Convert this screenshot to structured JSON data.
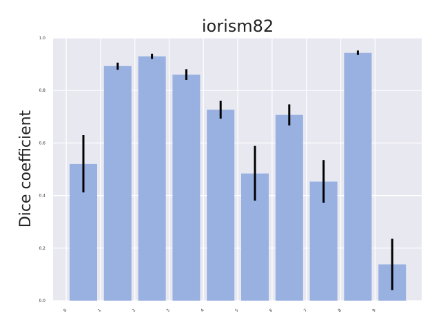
{
  "chart_data": {
    "type": "bar",
    "title": "iorism82",
    "xlabel": "",
    "ylabel": "Dice coefficient",
    "categories": [
      "0",
      "1",
      "2",
      "3",
      "4",
      "5",
      "6",
      "7",
      "8",
      "9"
    ],
    "series": [
      {
        "values": [
          0.52,
          0.893,
          0.93,
          0.86,
          0.727,
          0.484,
          0.707,
          0.453,
          0.943,
          0.138
        ],
        "error_low": [
          0.412,
          0.879,
          0.92,
          0.84,
          0.693,
          0.381,
          0.667,
          0.373,
          0.935,
          0.04
        ],
        "error_high": [
          0.63,
          0.906,
          0.94,
          0.881,
          0.761,
          0.589,
          0.747,
          0.535,
          0.952,
          0.236
        ]
      }
    ],
    "ylim": [
      0,
      1.0
    ],
    "yticks": [
      "0.0",
      "0.2",
      "0.4",
      "0.6",
      "0.8",
      "1.0"
    ],
    "grid": true,
    "colors": {
      "bar": "#98b1e1",
      "error_bar": "#000000",
      "plot_background": "#e8e8f1",
      "grid": "#ffffff"
    }
  }
}
